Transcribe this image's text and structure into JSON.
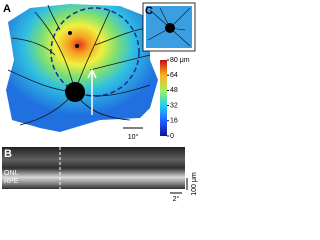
{
  "panels": [
    {
      "label": "A"
    },
    {
      "label": "B"
    },
    {
      "label": "C"
    }
  ],
  "colorbar": {
    "ticks": [
      {
        "value": 80,
        "label": "80 μm"
      },
      64,
      48,
      32,
      16,
      0
    ],
    "range": [
      0,
      80
    ]
  },
  "scale_bars": {
    "a": "10°",
    "b_vertical": "100 μm",
    "b_horizontal": "2°"
  },
  "layer_labels": [
    "ONL",
    "RPE"
  ]
}
